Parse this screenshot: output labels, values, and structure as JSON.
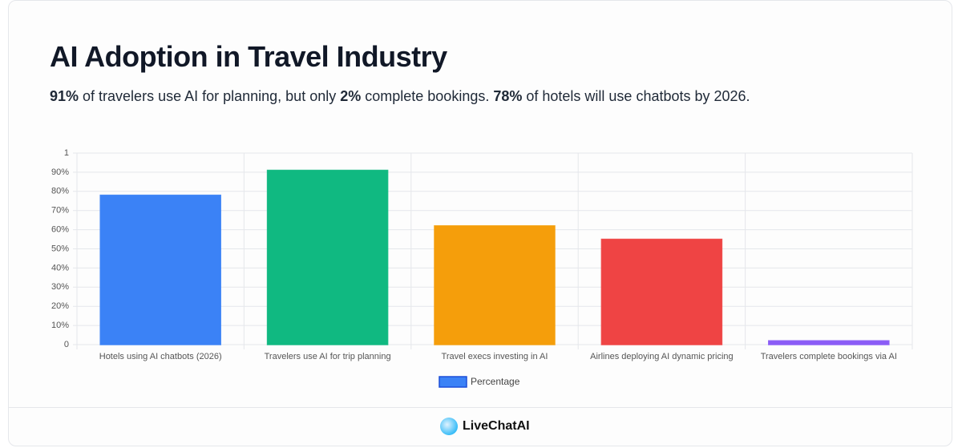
{
  "chart_data": {
    "type": "bar",
    "title": "AI Adoption in Travel Industry",
    "subtitle": [
      {
        "text": "91%",
        "bold": true
      },
      {
        "text": " of travelers use AI for planning, but only ",
        "bold": false
      },
      {
        "text": "2%",
        "bold": true
      },
      {
        "text": " complete bookings. ",
        "bold": false
      },
      {
        "text": "78%",
        "bold": true
      },
      {
        "text": " of hotels will use chatbots by 2026.",
        "bold": false
      }
    ],
    "categories": [
      "Hotels using AI chatbots (2026)",
      "Travelers use AI for trip planning",
      "Travel execs investing in AI",
      "Airlines deploying AI dynamic pricing",
      "Travelers complete bookings via AI"
    ],
    "series": [
      {
        "name": "Percentage",
        "colors": [
          "#3b82f6",
          "#10b981",
          "#f59e0b",
          "#ef4444",
          "#8b5cf6"
        ],
        "legend_color": "#3b82f6",
        "values": [
          0.78,
          0.91,
          0.62,
          0.55,
          0.02
        ]
      }
    ],
    "ylim": [
      0,
      1
    ],
    "yticks": [
      0,
      {
        "value": 0.1,
        "label": "10%"
      },
      {
        "value": 0.2,
        "label": "20%"
      },
      {
        "value": 0.3,
        "label": "30%"
      },
      {
        "value": 0.4,
        "label": "40%"
      },
      {
        "value": 0.5,
        "label": "50%"
      },
      {
        "value": 0.6,
        "label": "60%"
      },
      {
        "value": 0.7,
        "label": "70%"
      },
      {
        "value": 0.8,
        "label": "80%"
      },
      {
        "value": 0.9,
        "label": "90%"
      },
      1
    ],
    "grid": true,
    "legend": "bottom"
  },
  "footer": {
    "brand": "LiveChatAI"
  }
}
